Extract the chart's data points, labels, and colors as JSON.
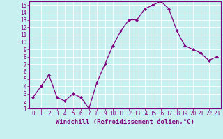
{
  "x": [
    0,
    1,
    2,
    3,
    4,
    5,
    6,
    7,
    8,
    9,
    10,
    11,
    12,
    13,
    14,
    15,
    16,
    17,
    18,
    19,
    20,
    21,
    22,
    23
  ],
  "y": [
    2.5,
    4.0,
    5.5,
    2.5,
    2.0,
    3.0,
    2.5,
    1.0,
    4.5,
    7.0,
    9.5,
    11.5,
    13.0,
    13.0,
    14.5,
    15.0,
    15.5,
    14.5,
    11.5,
    9.5,
    9.0,
    8.5,
    7.5,
    8.0
  ],
  "line_color": "#800080",
  "marker": "D",
  "markersize": 2.0,
  "linewidth": 0.9,
  "bg_color": "#c8f0f0",
  "grid_color": "#aadddd",
  "xlabel": "Windchill (Refroidissement éolien,°C)",
  "xlim": [
    -0.5,
    23.5
  ],
  "ylim": [
    1,
    15.5
  ],
  "xticks": [
    0,
    1,
    2,
    3,
    4,
    5,
    6,
    7,
    8,
    9,
    10,
    11,
    12,
    13,
    14,
    15,
    16,
    17,
    18,
    19,
    20,
    21,
    22,
    23
  ],
  "yticks": [
    1,
    2,
    3,
    4,
    5,
    6,
    7,
    8,
    9,
    10,
    11,
    12,
    13,
    14,
    15
  ],
  "tick_color": "#800080",
  "label_color": "#800080",
  "xlabel_fontsize": 6.5,
  "tick_fontsize": 5.5
}
